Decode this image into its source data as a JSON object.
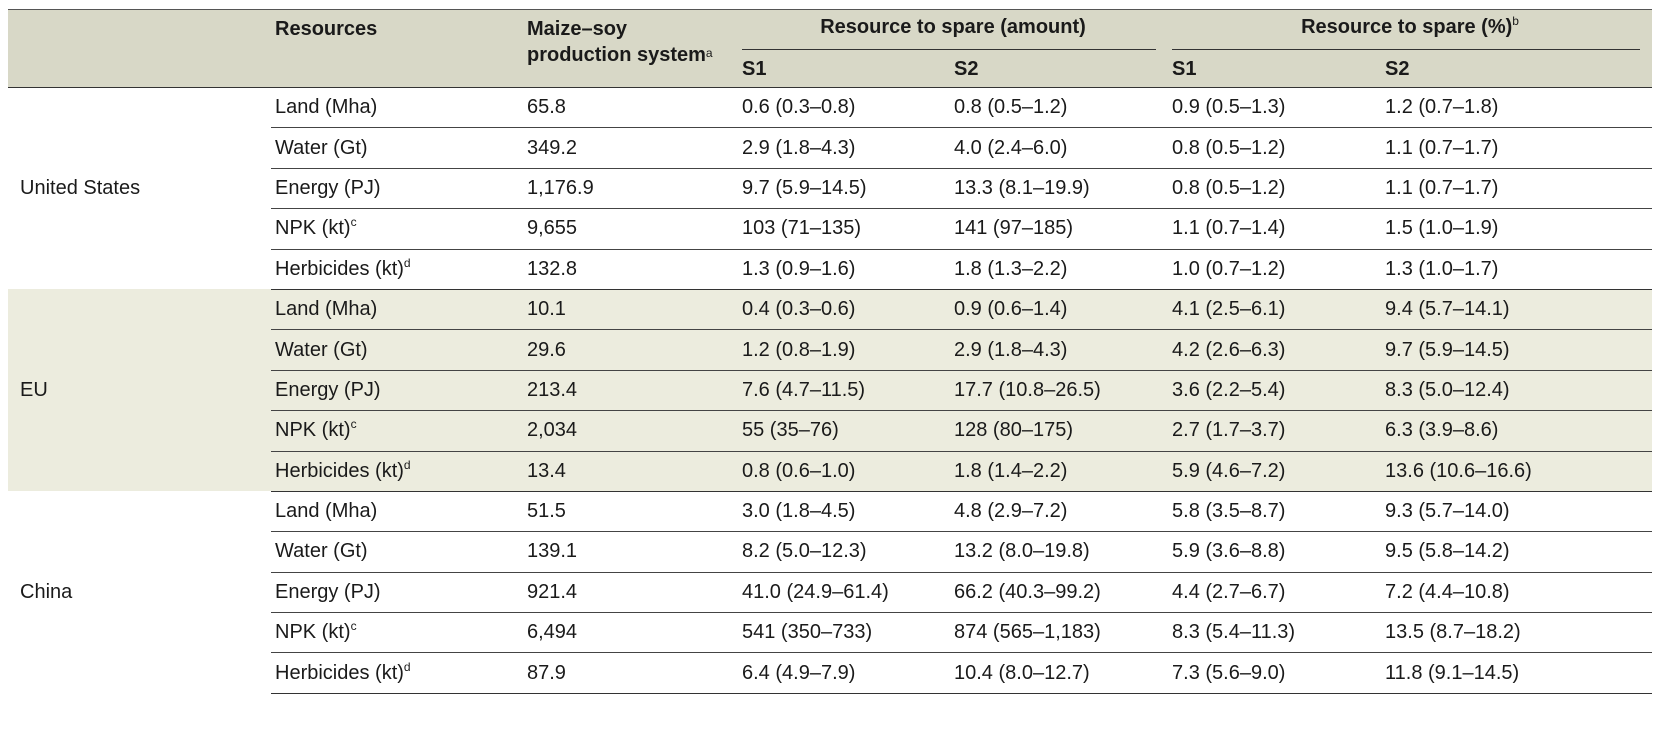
{
  "header": {
    "resources": "Resources",
    "production_system": "Maize–soy production system",
    "production_system_note": "a",
    "spare_amount": "Resource to spare (amount)",
    "spare_pct": "Resource to spare (%)",
    "spare_pct_note": "b",
    "s1": "S1",
    "s2": "S2"
  },
  "groups": [
    {
      "region": "United States",
      "rows": [
        {
          "resource": "Land (Mha)",
          "note": "",
          "system": "65.8",
          "s1_amt": "0.6 (0.3–0.8)",
          "s2_amt": "0.8 (0.5–1.2)",
          "s1_pct": "0.9 (0.5–1.3)",
          "s2_pct": "1.2 (0.7–1.8)"
        },
        {
          "resource": "Water (Gt)",
          "note": "",
          "system": "349.2",
          "s1_amt": "2.9 (1.8–4.3)",
          "s2_amt": "4.0 (2.4–6.0)",
          "s1_pct": "0.8 (0.5–1.2)",
          "s2_pct": "1.1 (0.7–1.7)"
        },
        {
          "resource": "Energy (PJ)",
          "note": "",
          "system": "1,176.9",
          "s1_amt": "9.7 (5.9–14.5)",
          "s2_amt": "13.3 (8.1–19.9)",
          "s1_pct": "0.8 (0.5–1.2)",
          "s2_pct": "1.1 (0.7–1.7)"
        },
        {
          "resource": "NPK (kt)",
          "note": "c",
          "system": "9,655",
          "s1_amt": "103 (71–135)",
          "s2_amt": "141 (97–185)",
          "s1_pct": "1.1 (0.7–1.4)",
          "s2_pct": "1.5 (1.0–1.9)"
        },
        {
          "resource": "Herbicides (kt)",
          "note": "d",
          "system": "132.8",
          "s1_amt": "1.3 (0.9–1.6)",
          "s2_amt": "1.8 (1.3–2.2)",
          "s1_pct": "1.0 (0.7–1.2)",
          "s2_pct": "1.3 (1.0–1.7)"
        }
      ]
    },
    {
      "region": "EU",
      "rows": [
        {
          "resource": "Land (Mha)",
          "note": "",
          "system": "10.1",
          "s1_amt": "0.4 (0.3–0.6)",
          "s2_amt": "0.9 (0.6–1.4)",
          "s1_pct": "4.1 (2.5–6.1)",
          "s2_pct": "9.4 (5.7–14.1)"
        },
        {
          "resource": "Water (Gt)",
          "note": "",
          "system": "29.6",
          "s1_amt": "1.2 (0.8–1.9)",
          "s2_amt": "2.9 (1.8–4.3)",
          "s1_pct": "4.2 (2.6–6.3)",
          "s2_pct": "9.7 (5.9–14.5)"
        },
        {
          "resource": "Energy (PJ)",
          "note": "",
          "system": "213.4",
          "s1_amt": "7.6 (4.7–11.5)",
          "s2_amt": "17.7 (10.8–26.5)",
          "s1_pct": "3.6 (2.2–5.4)",
          "s2_pct": "8.3 (5.0–12.4)"
        },
        {
          "resource": "NPK (kt)",
          "note": "c",
          "system": "2,034",
          "s1_amt": "55 (35–76)",
          "s2_amt": "128 (80–175)",
          "s1_pct": "2.7 (1.7–3.7)",
          "s2_pct": "6.3 (3.9–8.6)"
        },
        {
          "resource": "Herbicides (kt)",
          "note": "d",
          "system": "13.4",
          "s1_amt": "0.8 (0.6–1.0)",
          "s2_amt": "1.8 (1.4–2.2)",
          "s1_pct": "5.9 (4.6–7.2)",
          "s2_pct": "13.6 (10.6–16.6)"
        }
      ]
    },
    {
      "region": "China",
      "rows": [
        {
          "resource": "Land (Mha)",
          "note": "",
          "system": "51.5",
          "s1_amt": "3.0 (1.8–4.5)",
          "s2_amt": "4.8 (2.9–7.2)",
          "s1_pct": "5.8 (3.5–8.7)",
          "s2_pct": "9.3 (5.7–14.0)"
        },
        {
          "resource": "Water (Gt)",
          "note": "",
          "system": "139.1",
          "s1_amt": "8.2 (5.0–12.3)",
          "s2_amt": "13.2 (8.0–19.8)",
          "s1_pct": "5.9 (3.6–8.8)",
          "s2_pct": "9.5 (5.8–14.2)"
        },
        {
          "resource": "Energy (PJ)",
          "note": "",
          "system": "921.4",
          "s1_amt": "41.0 (24.9–61.4)",
          "s2_amt": "66.2 (40.3–99.2)",
          "s1_pct": "4.4 (2.7–6.7)",
          "s2_pct": "7.2 (4.4–10.8)"
        },
        {
          "resource": "NPK (kt)",
          "note": "c",
          "system": "6,494",
          "s1_amt": "541 (350–733)",
          "s2_amt": "874 (565–1,183)",
          "s1_pct": "8.3 (5.4–11.3)",
          "s2_pct": "13.5 (8.7–18.2)"
        },
        {
          "resource": "Herbicides (kt)",
          "note": "d",
          "system": "87.9",
          "s1_amt": "6.4 (4.9–7.9)",
          "s2_amt": "10.4 (8.0–12.7)",
          "s1_pct": "7.3 (5.6–9.0)",
          "s2_pct": "11.8 (9.1–14.5)"
        }
      ]
    }
  ],
  "colors": {
    "header_bg": "#d8d8c7",
    "shade_bg": "#ececde",
    "rule": "#333333"
  }
}
